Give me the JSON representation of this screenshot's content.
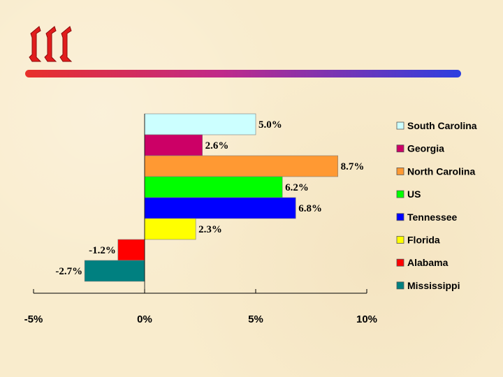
{
  "logo_icon": "iii-logo-icon",
  "chart_data": {
    "type": "bar",
    "orientation": "horizontal",
    "title": "",
    "xlabel": "",
    "ylabel": "",
    "categories": [
      "South Carolina",
      "Georgia",
      "North Carolina",
      "US",
      "Tennessee",
      "Florida",
      "Alabama",
      "Mississippi"
    ],
    "values": [
      5.0,
      2.6,
      8.7,
      6.2,
      6.8,
      2.3,
      -1.2,
      -2.7
    ],
    "value_labels": [
      "5.0%",
      "2.6%",
      "8.7%",
      "6.2%",
      "6.8%",
      "2.3%",
      "-1.2%",
      "-2.7%"
    ],
    "colors": [
      "#ccffff",
      "#cc0066",
      "#ff9933",
      "#00ff00",
      "#0000ff",
      "#ffff00",
      "#ff0000",
      "#008080"
    ],
    "xlim": [
      -5,
      10
    ],
    "x_ticks": [
      -5,
      0,
      5,
      10
    ],
    "x_tick_labels": [
      "-5%",
      "0%",
      "5%",
      "10%"
    ],
    "grid": false,
    "legend_position": "right",
    "legend": [
      "South Carolina",
      "Georgia",
      "North Carolina",
      "US",
      "Tennessee",
      "Florida",
      "Alabama",
      "Mississippi"
    ]
  }
}
